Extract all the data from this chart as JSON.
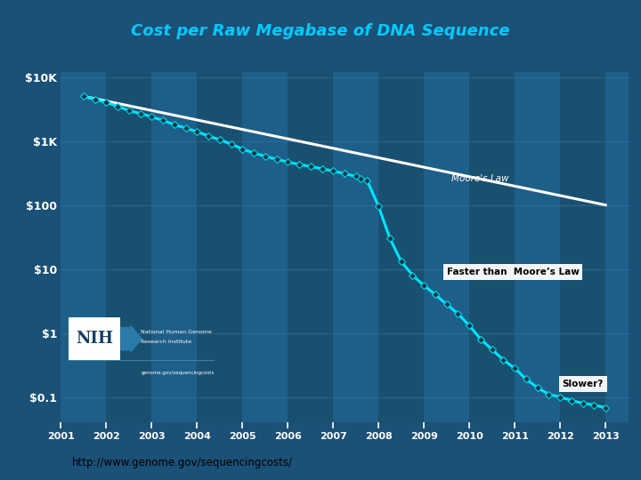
{
  "title": "Cost per Raw Megabase of DNA Sequence",
  "title_color": "#00CCFF",
  "bg_color": "#1B5077",
  "plot_bg_gradient_top": "#1B5077",
  "plot_bg_gradient_bot": "#1B5077",
  "col_even": "#1E5F8A",
  "col_odd": "#195070",
  "grid_color": "#3a7aaa",
  "url_text": "http://www.genome.gov/sequencingcosts/",
  "moore_label": "Moore's Law",
  "faster_label": "Faster than  Moore’s Law",
  "slower_label": "Slower?",
  "sequencing_data": {
    "x": [
      2001.5,
      2001.75,
      2002.0,
      2002.25,
      2002.5,
      2002.75,
      2003.0,
      2003.25,
      2003.5,
      2003.75,
      2004.0,
      2004.25,
      2004.5,
      2004.75,
      2005.0,
      2005.25,
      2005.5,
      2005.75,
      2006.0,
      2006.25,
      2006.5,
      2006.75,
      2007.0,
      2007.25,
      2007.5,
      2007.6,
      2007.75,
      2008.0,
      2008.25,
      2008.5,
      2008.75,
      2009.0,
      2009.25,
      2009.5,
      2009.75,
      2010.0,
      2010.25,
      2010.5,
      2010.75,
      2011.0,
      2011.25,
      2011.5,
      2011.75,
      2012.0,
      2012.25,
      2012.5,
      2012.75,
      2013.0
    ],
    "y": [
      5000,
      4500,
      4000,
      3500,
      3000,
      2700,
      2400,
      2100,
      1800,
      1600,
      1400,
      1200,
      1050,
      900,
      750,
      650,
      580,
      520,
      470,
      430,
      400,
      370,
      340,
      310,
      280,
      260,
      240,
      95,
      30,
      13,
      8,
      5.5,
      4,
      2.8,
      2.0,
      1.3,
      0.8,
      0.55,
      0.38,
      0.28,
      0.19,
      0.14,
      0.11,
      0.1,
      0.088,
      0.08,
      0.075,
      0.068
    ]
  },
  "moore_law": {
    "x": [
      2001.5,
      2013.0
    ],
    "y": [
      5000,
      100
    ]
  },
  "line_color": "#00E5FF",
  "marker_facecolor": "#003344",
  "marker_edgecolor": "#00CCDD",
  "moore_color": "#FFFFFF",
  "ytick_labels": [
    "$0.1",
    "$1",
    "$10",
    "$100",
    "$1K",
    "$10K"
  ],
  "ytick_values": [
    0.1,
    1,
    10,
    100,
    1000,
    10000
  ],
  "xlim": [
    2001.0,
    2013.5
  ],
  "ylim_log": [
    0.04,
    12000
  ],
  "xtick_years": [
    2001,
    2002,
    2003,
    2004,
    2005,
    2006,
    2007,
    2008,
    2009,
    2010,
    2011,
    2012,
    2013
  ]
}
